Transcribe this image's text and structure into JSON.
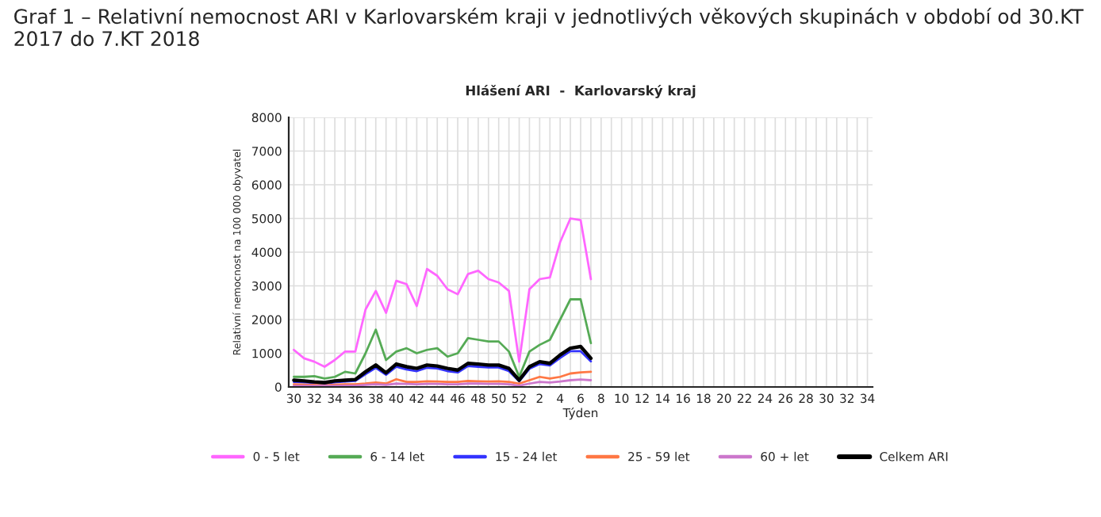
{
  "chart_data": {
    "type": "line",
    "title": "Hlášení ARI  -  Karlovarský kraj",
    "subtitle": "Graf 1 – Relativní nemocnost ARI v Karlovarském kraji v jednotlivých věkových skupinách v období od 30.KT 2017 do 7.KT 2018",
    "xlabel": "Týden",
    "ylabel": "Relativní nemocnost na 100 000 obyvatel",
    "categories": [
      "30",
      null,
      "32",
      null,
      "34",
      null,
      "36",
      null,
      "38",
      null,
      "40",
      null,
      "42",
      null,
      "44",
      null,
      "46",
      null,
      "48",
      null,
      "50",
      null,
      "52",
      null,
      "2",
      null,
      "4",
      null,
      "6",
      null,
      "8",
      null,
      "10",
      null,
      "12",
      null,
      "14",
      null,
      "16",
      null,
      "18",
      null,
      "20",
      null,
      "22",
      null,
      "24",
      null,
      "26",
      null,
      "28",
      null,
      "30",
      null,
      "32",
      null,
      "34"
    ],
    "ylim": [
      0,
      8000
    ],
    "yticks": [
      0,
      1000,
      2000,
      3000,
      4000,
      5000,
      6000,
      7000,
      8000
    ],
    "grid": true,
    "legend": "bottom",
    "marker": "none",
    "line_style": "solid",
    "series": [
      {
        "name": "0 - 5 let",
        "color": "#ff66ff",
        "values": [
          1100,
          850,
          750,
          600,
          800,
          1050,
          1050,
          2300,
          2850,
          2200,
          3150,
          3050,
          2400,
          3500,
          3300,
          2900,
          2750,
          3350,
          3450,
          3200,
          3100,
          2850,
          750,
          2900,
          3200,
          3250,
          4300,
          5000,
          4950,
          3200,
          null,
          null,
          null,
          null,
          null,
          null,
          null,
          null,
          null,
          null,
          null,
          null,
          null,
          null,
          null,
          null,
          null,
          null,
          null,
          null,
          null,
          null,
          null,
          null,
          null,
          null,
          null
        ]
      },
      {
        "name": "6 - 14 let",
        "color": "#55aa55",
        "values": [
          300,
          300,
          320,
          250,
          300,
          450,
          400,
          1000,
          1700,
          800,
          1050,
          1150,
          1000,
          1100,
          1150,
          900,
          1000,
          1450,
          1400,
          1350,
          1350,
          1050,
          300,
          1050,
          1250,
          1400,
          2000,
          2600,
          2600,
          1300,
          null,
          null,
          null,
          null,
          null,
          null,
          null,
          null,
          null,
          null,
          null,
          null,
          null,
          null,
          null,
          null,
          null,
          null,
          null,
          null,
          null,
          null,
          null,
          null,
          null,
          null,
          null
        ]
      },
      {
        "name": "15 - 24 let",
        "color": "#3333ff",
        "values": [
          150,
          140,
          120,
          100,
          140,
          160,
          180,
          380,
          570,
          360,
          600,
          520,
          470,
          570,
          550,
          470,
          430,
          620,
          600,
          580,
          580,
          470,
          170,
          540,
          680,
          640,
          860,
          1060,
          1060,
          760,
          null,
          null,
          null,
          null,
          null,
          null,
          null,
          null,
          null,
          null,
          null,
          null,
          null,
          null,
          null,
          null,
          null,
          null,
          null,
          null,
          null,
          null,
          null,
          null,
          null,
          null,
          null
        ]
      },
      {
        "name": "25 - 59 let",
        "color": "#ff7744",
        "values": [
          80,
          70,
          60,
          50,
          70,
          80,
          80,
          100,
          130,
          100,
          230,
          150,
          150,
          170,
          160,
          150,
          150,
          180,
          170,
          160,
          170,
          150,
          100,
          200,
          300,
          250,
          300,
          400,
          430,
          450,
          null,
          null,
          null,
          null,
          null,
          null,
          null,
          null,
          null,
          null,
          null,
          null,
          null,
          null,
          null,
          null,
          null,
          null,
          null,
          null,
          null,
          null,
          null,
          null,
          null,
          null,
          null
        ]
      },
      {
        "name": "60 + let",
        "color": "#cc77cc",
        "values": [
          30,
          30,
          30,
          30,
          30,
          40,
          40,
          60,
          80,
          60,
          100,
          90,
          80,
          90,
          90,
          80,
          80,
          100,
          100,
          90,
          90,
          80,
          40,
          100,
          150,
          130,
          160,
          200,
          220,
          200,
          null,
          null,
          null,
          null,
          null,
          null,
          null,
          null,
          null,
          null,
          null,
          null,
          null,
          null,
          null,
          null,
          null,
          null,
          null,
          null,
          null,
          null,
          null,
          null,
          null,
          null,
          null
        ]
      },
      {
        "name": "Celkem ARI",
        "color": "#000000",
        "values": [
          200,
          180,
          150,
          130,
          180,
          200,
          220,
          450,
          650,
          420,
          680,
          600,
          550,
          650,
          620,
          550,
          500,
          700,
          680,
          650,
          650,
          550,
          200,
          600,
          750,
          700,
          950,
          1150,
          1200,
          850,
          null,
          null,
          null,
          null,
          null,
          null,
          null,
          null,
          null,
          null,
          null,
          null,
          null,
          null,
          null,
          null,
          null,
          null,
          null,
          null,
          null,
          null,
          null,
          null,
          null,
          null,
          null
        ]
      }
    ]
  }
}
